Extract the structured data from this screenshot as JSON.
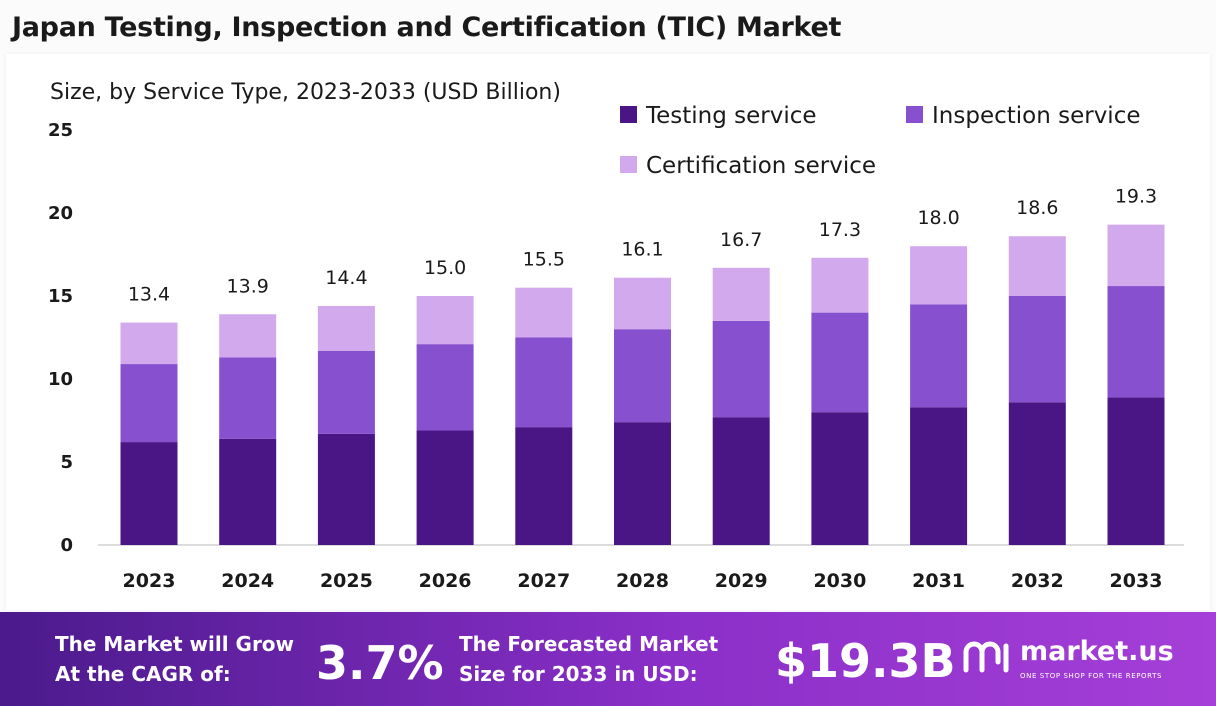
{
  "title": "Japan Testing, Inspection and Certification (TIC) Market",
  "chart_data": {
    "type": "bar",
    "stacked": true,
    "subtitle": "Size, by Service Type, 2023-2033 (USD Billion)",
    "categories": [
      "2023",
      "2024",
      "2025",
      "2026",
      "2027",
      "2028",
      "2029",
      "2030",
      "2031",
      "2032",
      "2033"
    ],
    "series": [
      {
        "name": "Testing service",
        "color": "#4a1585",
        "values": [
          6.2,
          6.4,
          6.7,
          6.9,
          7.1,
          7.4,
          7.7,
          8.0,
          8.3,
          8.6,
          8.9
        ]
      },
      {
        "name": "Inspection service",
        "color": "#8750cf",
        "values": [
          4.7,
          4.9,
          5.0,
          5.2,
          5.4,
          5.6,
          5.8,
          6.0,
          6.2,
          6.4,
          6.7
        ]
      },
      {
        "name": "Certification service",
        "color": "#d2a9ec",
        "values": [
          2.5,
          2.6,
          2.7,
          2.9,
          3.0,
          3.1,
          3.2,
          3.3,
          3.5,
          3.6,
          3.7
        ]
      }
    ],
    "totals": [
      "13.4",
      "13.9",
      "14.4",
      "15.0",
      "15.5",
      "16.1",
      "16.7",
      "17.3",
      "18.0",
      "18.6",
      "19.3"
    ],
    "ylim": [
      0,
      25
    ],
    "yticks": [
      0,
      5,
      10,
      15,
      20,
      25
    ],
    "grid": false,
    "legend_position": "top-right"
  },
  "footer": {
    "cagr_label": "The Market will Grow\nAt the CAGR of:",
    "cagr_value": "3.7%",
    "forecast_label": "The Forecasted Market\nSize for 2033 in USD:",
    "forecast_value": "$19.3B",
    "brand_name": "market.us",
    "brand_tagline": "ONE STOP SHOP FOR THE REPORTS"
  }
}
